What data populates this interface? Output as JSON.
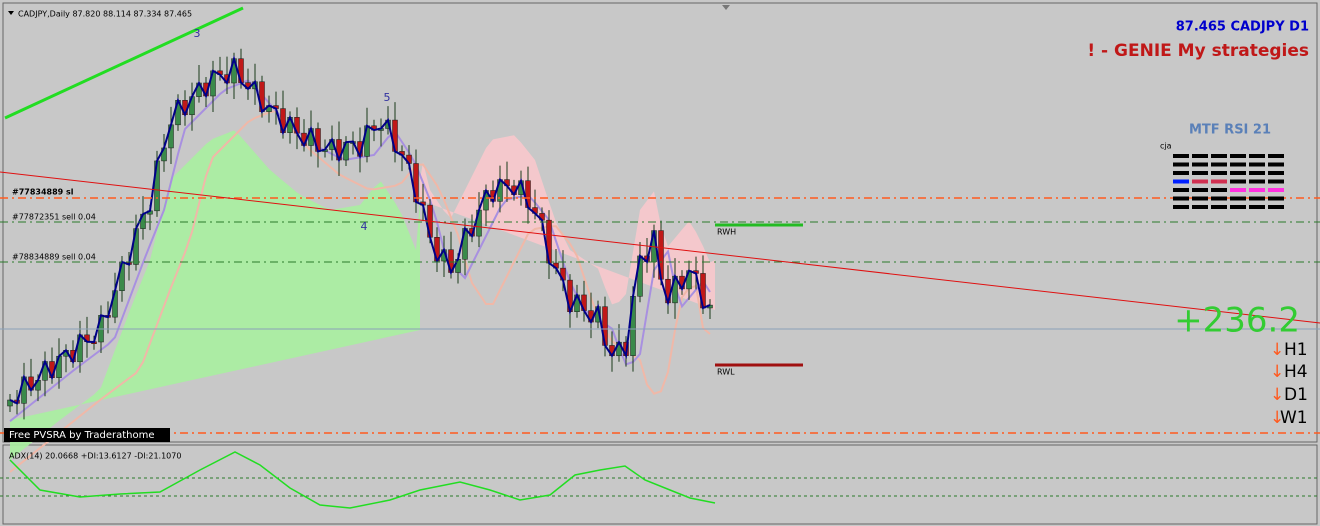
{
  "header": {
    "symbol_info": "CADJPY,Daily  87.820 88.114 87.334 87.465"
  },
  "panel": {
    "price_symbol": "87.465 CADJPY D1",
    "strategy": "! - GENIE My strategies"
  },
  "orders": [
    "#77834889 sl",
    "#77872351 sell 0.04",
    "#78834889 sell 0.04"
  ],
  "levels": {
    "high": "RWH",
    "low": "RWL"
  },
  "waves": [
    "3",
    "5",
    "4"
  ],
  "profit": "+236.2",
  "timeframes": [
    "H1",
    "H4",
    "D1",
    "W1"
  ],
  "mtf_rsi": {
    "title": "MTF RSI  21",
    "author": "cja"
  },
  "footer_label": "Free  PVSRA  by Traderathome",
  "indicator": {
    "label": "ADX(14) 20.0668 +DI:13.6127 -DI:21.1070"
  }
}
